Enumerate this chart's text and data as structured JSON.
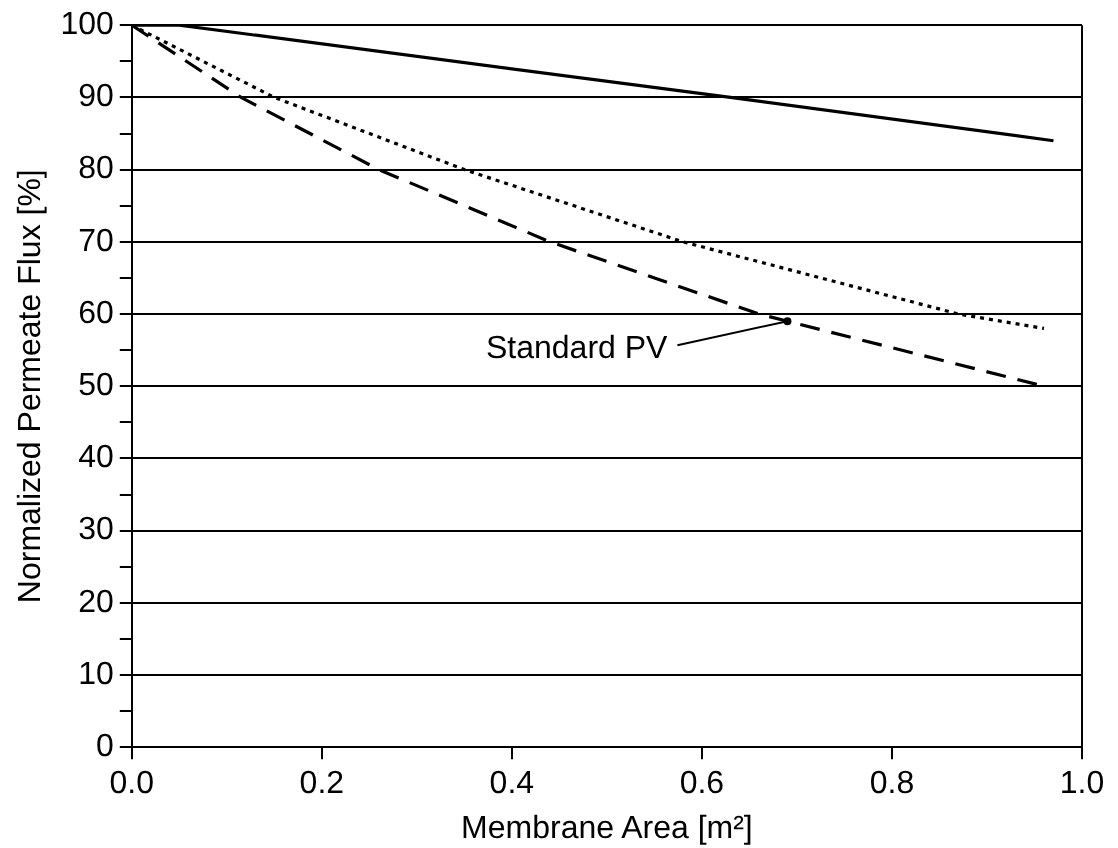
{
  "chart_data": {
    "type": "line",
    "xlabel": "Membrane Area [m²]",
    "ylabel": "Normalized Permeate Flux [%]",
    "xlim": [
      0,
      1
    ],
    "xticks": [
      {
        "value": 0,
        "label": "0.0"
      },
      {
        "value": 0.2,
        "label": "0.2"
      },
      {
        "value": 0.4,
        "label": "0.4"
      },
      {
        "value": 0.6,
        "label": "0.6"
      },
      {
        "value": 0.8,
        "label": "0.8"
      },
      {
        "value": 1,
        "label": "1.0"
      }
    ],
    "ylim": [
      0,
      100
    ],
    "yticks": [
      0,
      {
        "value": 5,
        "label": null
      },
      10,
      {
        "value": 15,
        "label": null
      },
      20,
      {
        "value": 25,
        "label": null
      },
      30,
      {
        "value": 35,
        "label": null
      },
      40,
      {
        "value": 45,
        "label": null
      },
      50,
      {
        "value": 55,
        "label": null
      },
      60,
      {
        "value": 65,
        "label": null
      },
      70,
      {
        "value": 75,
        "label": null
      },
      80,
      {
        "value": 85,
        "label": null
      },
      90,
      {
        "value": 95,
        "label": null
      },
      100
    ],
    "grid": "y",
    "legend": false,
    "marker": "none",
    "series": [
      {
        "color": "#000000",
        "line_style": "solid",
        "x": [
          0,
          0.05,
          0.63,
          0.97
        ],
        "values": [
          100,
          100,
          90,
          84
        ]
      },
      {
        "color": "#000000",
        "line_style": "dotted",
        "x": [
          0,
          0.15,
          0.35,
          0.58,
          0.87,
          0.96
        ],
        "values": [
          100,
          90,
          80,
          70,
          60,
          58
        ]
      },
      {
        "color": "#000000",
        "line_style": "dashed",
        "x": [
          0,
          0.115,
          0.26,
          0.44,
          0.66,
          0.96
        ],
        "values": [
          100,
          90,
          80,
          70,
          60,
          50
        ]
      }
    ],
    "annotations": [
      {
        "text": "Standard PV",
        "x": 0.69,
        "y": 59
      }
    ]
  }
}
